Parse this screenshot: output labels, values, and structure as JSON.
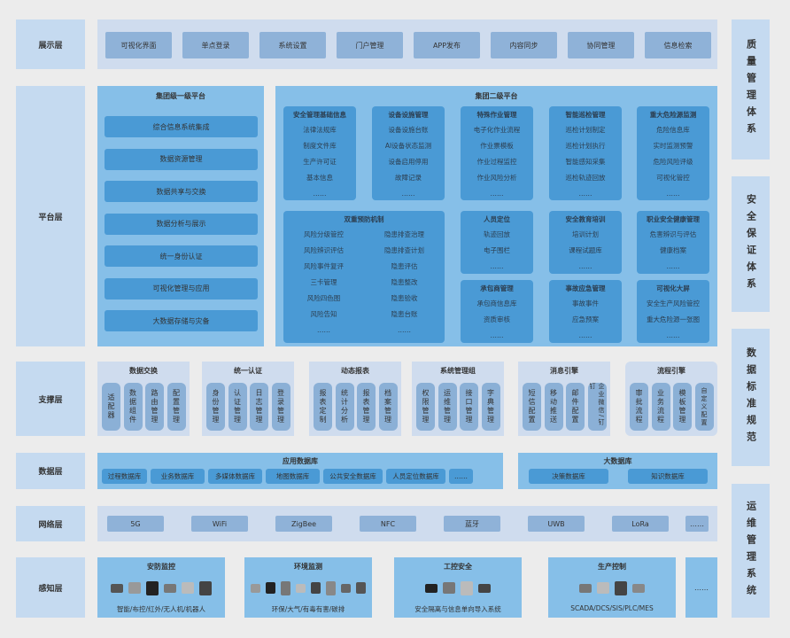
{
  "layers": {
    "display": "展示层",
    "platform": "平台层",
    "support": "支撑层",
    "data": "数据层",
    "network": "网络层",
    "perception": "感知层"
  },
  "side_systems": [
    "质量管理体系",
    "安全保证体系",
    "数据标准规范",
    "运维管理系统"
  ],
  "display_items": [
    "可视化界面",
    "单点登录",
    "系统设置",
    "门户管理",
    "APP发布",
    "内容同步",
    "协同管理",
    "信息检索"
  ],
  "group_level1": {
    "title": "集团级一级平台",
    "items": [
      "综合信息系统集成",
      "数据资源管理",
      "数据共享与交换",
      "数据分析与展示",
      "统一身份认证",
      "可视化管理与应用",
      "大数据存储与灾备"
    ]
  },
  "group_level2": {
    "title": "集团二级平台",
    "top_modules": [
      {
        "title": "安全管理基础信息",
        "items": [
          "法律法规库",
          "制度文件库",
          "生产许可证",
          "基本信息",
          "……"
        ]
      },
      {
        "title": "设备设施管理",
        "items": [
          "设备设施台账",
          "AI设备状态监测",
          "设备启用停用",
          "故障记录",
          "……"
        ]
      },
      {
        "title": "特殊作业管理",
        "items": [
          "电子化作业流程",
          "作业票模板",
          "作业过程监控",
          "作业风险分析",
          "……"
        ]
      },
      {
        "title": "智能巡检管理",
        "items": [
          "巡检计划制定",
          "巡检计划执行",
          "智能感知采集",
          "巡检轨迹回放",
          "……"
        ]
      },
      {
        "title": "重大危险源监测",
        "items": [
          "危险信息库",
          "实时监测预警",
          "危险风险评级",
          "可视化管控",
          "……"
        ]
      }
    ],
    "dual_prevention": {
      "title": "双重预防机制",
      "left": [
        "风险分级管控",
        "风险辨识评估",
        "风险事件复评",
        "三卡管理",
        "风险四色图",
        "风险告知",
        "……"
      ],
      "right": [
        "隐患排查治理",
        "隐患排查计划",
        "隐患评估",
        "隐患整改",
        "隐患验收",
        "隐患台账",
        "……"
      ]
    },
    "small_modules": [
      {
        "title": "人员定位",
        "items": [
          "轨迹回放",
          "电子围栏",
          "……"
        ]
      },
      {
        "title": "安全教育培训",
        "items": [
          "培训计划",
          "课程试题库",
          "……"
        ]
      },
      {
        "title": "职业安全健康管理",
        "items": [
          "危害辨识与评估",
          "健康档案",
          "……"
        ]
      },
      {
        "title": "承包商管理",
        "items": [
          "承包商信息库",
          "资质审核",
          "……"
        ]
      },
      {
        "title": "事故应急管理",
        "items": [
          "事故事件",
          "应急预案",
          "……"
        ]
      },
      {
        "title": "可视化大屏",
        "items": [
          "安全生产风险管控",
          "重大危险源一张图",
          "……"
        ]
      }
    ]
  },
  "support_groups": [
    {
      "title": "数据交换",
      "items": [
        "适配器",
        "数据组件",
        "路由管理",
        "配置管理"
      ]
    },
    {
      "title": "统一认证",
      "items": [
        "身份管理",
        "认证管理",
        "日志管理",
        "登录管理"
      ]
    },
    {
      "title": "动态报表",
      "items": [
        "报表定制",
        "统计分析",
        "报表管理",
        "档案管理"
      ]
    },
    {
      "title": "系统管理组",
      "items": [
        "权限管理",
        "运维管理",
        "接口管理",
        "字典管理"
      ]
    },
    {
      "title": "消息引擎",
      "items": [
        "短信配置",
        "移动推送",
        "邮件配置",
        "企业微信/钉钉"
      ]
    },
    {
      "title": "流程引擎",
      "items": [
        "审批流程",
        "业务流程",
        "模板管理",
        "自定义配置"
      ]
    }
  ],
  "app_db": {
    "title": "应用数据库",
    "items": [
      "过程数据库",
      "业务数据库",
      "多媒体数据库",
      "地图数据库",
      "公共安全数据库",
      "人员定位数据库",
      "……"
    ]
  },
  "big_db": {
    "title": "大数据库",
    "items": [
      "决策数据库",
      "知识数据库"
    ]
  },
  "network_items": [
    "5G",
    "WiFi",
    "ZigBee",
    "NFC",
    "蓝牙",
    "UWB",
    "LoRa",
    "……"
  ],
  "perception_groups": [
    {
      "title": "安防监控",
      "caption": "智能/布控/红外/无人机/机器人",
      "devices": 6
    },
    {
      "title": "环境监测",
      "caption": "环保/大气/有毒有害/碳排",
      "devices": 8
    },
    {
      "title": "工控安全",
      "caption": "安全隔离与信息单向导入系统",
      "devices": 4
    },
    {
      "title": "生产控制",
      "caption": "SCADA/DCS/SIS/PLC/MES",
      "devices": 4
    }
  ],
  "perception_more": "……",
  "colors": {
    "label_bg": "#c5daf0",
    "panel": "#86bfe8",
    "module": "#4a9ad5",
    "pill": "#8bb0d6",
    "pale": "#cfdcee"
  }
}
